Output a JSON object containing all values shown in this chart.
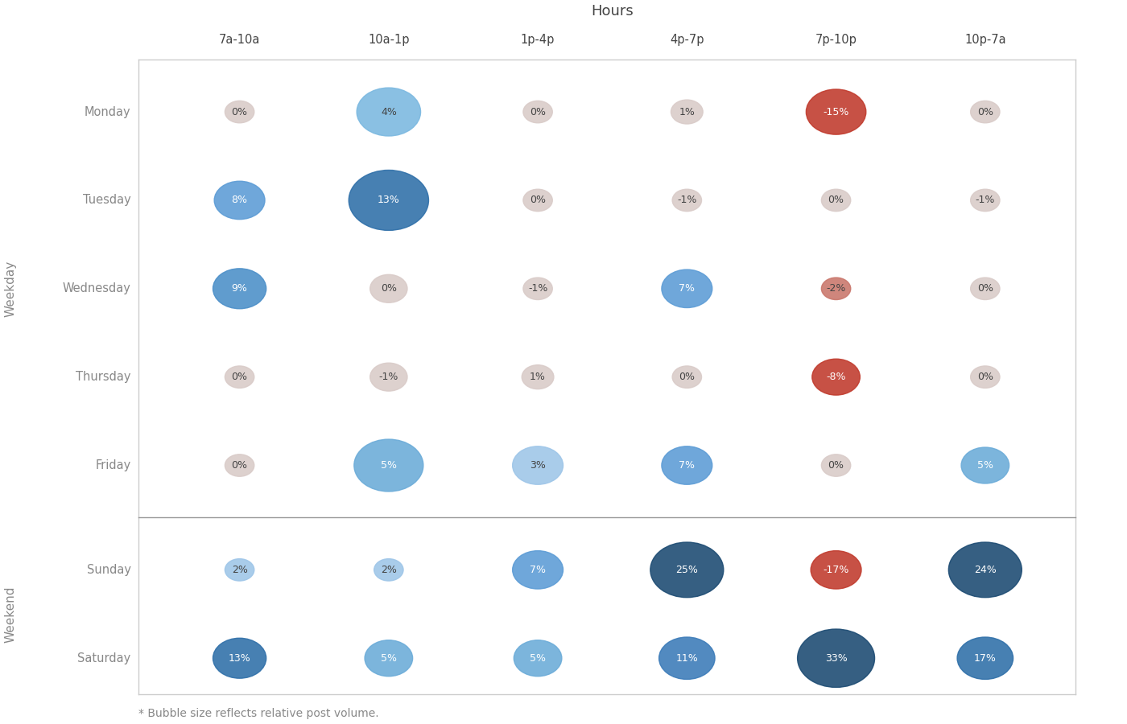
{
  "title": "Hours",
  "columns": [
    "7a-10a",
    "10a-1p",
    "1p-4p",
    "4p-7p",
    "7p-10p",
    "10p-7a"
  ],
  "rows": [
    "Monday",
    "Tuesday",
    "Wednesday",
    "Thursday",
    "Friday",
    "Sunday",
    "Saturday"
  ],
  "footnote": "* Bubble size reflects relative post volume.",
  "values": {
    "Monday": [
      0,
      4,
      0,
      1,
      -15,
      0
    ],
    "Tuesday": [
      8,
      13,
      0,
      -1,
      0,
      -1
    ],
    "Wednesday": [
      9,
      0,
      -1,
      7,
      -2,
      0
    ],
    "Thursday": [
      0,
      -1,
      1,
      0,
      -8,
      0
    ],
    "Friday": [
      0,
      5,
      3,
      7,
      0,
      5
    ],
    "Sunday": [
      2,
      2,
      7,
      25,
      -17,
      24
    ],
    "Saturday": [
      13,
      5,
      5,
      11,
      33,
      17
    ]
  },
  "bubble_radius": {
    "Monday": [
      22,
      48,
      22,
      24,
      45,
      22
    ],
    "Tuesday": [
      38,
      60,
      22,
      22,
      22,
      22
    ],
    "Wednesday": [
      40,
      28,
      22,
      38,
      22,
      22
    ],
    "Thursday": [
      22,
      28,
      24,
      22,
      36,
      22
    ],
    "Friday": [
      22,
      52,
      38,
      38,
      22,
      36
    ],
    "Sunday": [
      22,
      22,
      38,
      55,
      38,
      55
    ],
    "Saturday": [
      40,
      36,
      36,
      42,
      58,
      42
    ]
  },
  "bg_color": "#ffffff",
  "border_color": "#cccccc",
  "separator_color": "#999999",
  "row_label_color": "#888888",
  "col_label_color": "#444444",
  "title_color": "#444444",
  "footnote_color": "#888888"
}
